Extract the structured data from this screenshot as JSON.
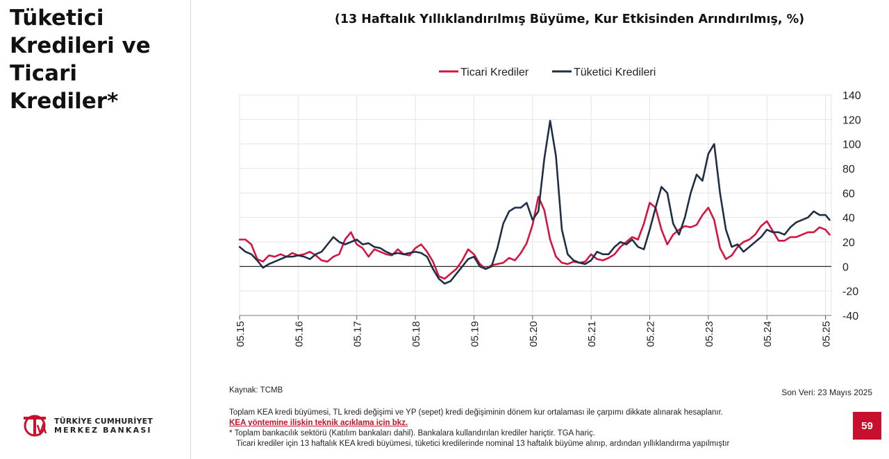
{
  "page": {
    "title": "Tüketici Kredileri ve Ticari Krediler*",
    "page_number": "59"
  },
  "logo": {
    "line1": "TÜRKİYE CUMHURİYET",
    "line2": "MERKEZ BANKASI",
    "emblem_text": "TCMB"
  },
  "footer": {
    "source": "Kaynak: TCMB",
    "last_data": "Son Veri: 23 Mayıs 2025",
    "note1": "Toplam KEA kredi büyümesi, TL kredi değişimi ve YP (sepet) kredi değişiminin dönem kur ortalaması ile çarpımı dikkate alınarak hesaplanır.",
    "link": "KEA yöntemine ilişkin teknik açıklama için bkz.",
    "note2": "* Toplam bankacılık sektörü (Katılım bankaları dahil). Bankalara kullandırılan krediler hariçtir. TGA hariç.",
    "note3": "Ticari krediler için 13 haftalık KEA kredi büyümesi, tüketici kredilerinde nominal 13 haftalık büyüme alınıp, ardından yıllıklandırma yapılmıştır"
  },
  "colors": {
    "ticari": "#d2143f",
    "tuketici": "#1e2f45",
    "grid": "#e3e3e3",
    "badge": "#c8102e"
  },
  "chart_data": {
    "type": "line",
    "title": "(13 Haftalık Yıllıklandırılmış Büyüme, Kur Etkisinden Arındırılmış, %)",
    "xlabel": "",
    "ylabel": "",
    "ylim": [
      -40,
      140
    ],
    "yticks": [
      140,
      120,
      100,
      80,
      60,
      40,
      20,
      0,
      -20,
      -40
    ],
    "xlim": [
      2015.0,
      2025.1
    ],
    "x_tick_labels": [
      "05.15",
      "05.16",
      "05.17",
      "05.18",
      "05.19",
      "05.20",
      "05.21",
      "05.22",
      "05.23",
      "05.24",
      "05.25"
    ],
    "legend_position": "top-center",
    "series": [
      {
        "name": "Ticari Krediler",
        "color": "#d2143f",
        "x": [
          2015.0,
          2015.1,
          2015.2,
          2015.3,
          2015.4,
          2015.5,
          2015.6,
          2015.7,
          2015.8,
          2015.9,
          2016.0,
          2016.1,
          2016.2,
          2016.3,
          2016.4,
          2016.5,
          2016.6,
          2016.7,
          2016.8,
          2016.9,
          2017.0,
          2017.1,
          2017.2,
          2017.3,
          2017.4,
          2017.5,
          2017.6,
          2017.7,
          2017.8,
          2017.9,
          2018.0,
          2018.1,
          2018.2,
          2018.3,
          2018.4,
          2018.5,
          2018.6,
          2018.7,
          2018.8,
          2018.9,
          2019.0,
          2019.1,
          2019.2,
          2019.3,
          2019.4,
          2019.5,
          2019.6,
          2019.7,
          2019.8,
          2019.9,
          2020.0,
          2020.1,
          2020.2,
          2020.3,
          2020.4,
          2020.5,
          2020.6,
          2020.7,
          2020.8,
          2020.9,
          2021.0,
          2021.1,
          2021.2,
          2021.3,
          2021.4,
          2021.5,
          2021.6,
          2021.7,
          2021.8,
          2021.9,
          2022.0,
          2022.1,
          2022.2,
          2022.3,
          2022.4,
          2022.5,
          2022.6,
          2022.7,
          2022.8,
          2022.9,
          2023.0,
          2023.1,
          2023.2,
          2023.3,
          2023.4,
          2023.5,
          2023.6,
          2023.7,
          2023.8,
          2023.9,
          2024.0,
          2024.1,
          2024.2,
          2024.3,
          2024.4,
          2024.5,
          2024.6,
          2024.7,
          2024.8,
          2024.9,
          2025.0,
          2025.07
        ],
        "values": [
          22,
          22,
          18,
          6,
          4,
          9,
          8,
          10,
          8,
          11,
          9,
          10,
          12,
          9,
          5,
          4,
          8,
          10,
          22,
          28,
          18,
          15,
          8,
          14,
          12,
          10,
          9,
          14,
          10,
          9,
          15,
          18,
          12,
          4,
          -8,
          -10,
          -6,
          -2,
          5,
          14,
          10,
          2,
          -2,
          1,
          2,
          3,
          7,
          5,
          11,
          19,
          34,
          57,
          46,
          22,
          8,
          3,
          2,
          4,
          3,
          4,
          10,
          6,
          5,
          7,
          10,
          16,
          20,
          24,
          22,
          35,
          52,
          48,
          30,
          18,
          26,
          30,
          33,
          32,
          34,
          42,
          48,
          38,
          15,
          6,
          9,
          16,
          20,
          22,
          26,
          33,
          37,
          29,
          21,
          21,
          24,
          24,
          26,
          28,
          28,
          32,
          30,
          26
        ]
      },
      {
        "name": "Tüketici Kredileri",
        "color": "#1e2f45",
        "x": [
          2015.0,
          2015.1,
          2015.2,
          2015.3,
          2015.4,
          2015.5,
          2015.6,
          2015.7,
          2015.8,
          2015.9,
          2016.0,
          2016.1,
          2016.2,
          2016.3,
          2016.4,
          2016.5,
          2016.6,
          2016.7,
          2016.8,
          2016.9,
          2017.0,
          2017.1,
          2017.2,
          2017.3,
          2017.4,
          2017.5,
          2017.6,
          2017.7,
          2017.8,
          2017.9,
          2018.0,
          2018.1,
          2018.2,
          2018.3,
          2018.4,
          2018.5,
          2018.6,
          2018.7,
          2018.8,
          2018.9,
          2019.0,
          2019.1,
          2019.2,
          2019.3,
          2019.4,
          2019.5,
          2019.6,
          2019.7,
          2019.8,
          2019.9,
          2020.0,
          2020.1,
          2020.2,
          2020.3,
          2020.4,
          2020.5,
          2020.6,
          2020.7,
          2020.8,
          2020.9,
          2021.0,
          2021.1,
          2021.2,
          2021.3,
          2021.4,
          2021.5,
          2021.6,
          2021.7,
          2021.8,
          2021.9,
          2022.0,
          2022.1,
          2022.2,
          2022.3,
          2022.4,
          2022.5,
          2022.6,
          2022.7,
          2022.8,
          2022.9,
          2023.0,
          2023.1,
          2023.2,
          2023.3,
          2023.4,
          2023.5,
          2023.6,
          2023.7,
          2023.8,
          2023.9,
          2024.0,
          2024.1,
          2024.2,
          2024.3,
          2024.4,
          2024.5,
          2024.6,
          2024.7,
          2024.8,
          2024.9,
          2025.0,
          2025.07
        ],
        "values": [
          16,
          12,
          10,
          5,
          -1,
          2,
          4,
          6,
          8,
          8,
          9,
          8,
          6,
          10,
          12,
          18,
          24,
          20,
          18,
          20,
          22,
          18,
          19,
          16,
          15,
          12,
          10,
          11,
          10,
          11,
          12,
          11,
          8,
          -2,
          -10,
          -14,
          -12,
          -6,
          0,
          6,
          8,
          0,
          -2,
          0,
          15,
          35,
          45,
          48,
          48,
          52,
          38,
          45,
          88,
          119,
          90,
          30,
          10,
          5,
          3,
          2,
          5,
          12,
          10,
          10,
          16,
          20,
          18,
          22,
          16,
          14,
          30,
          48,
          65,
          60,
          35,
          26,
          40,
          60,
          75,
          70,
          92,
          100,
          60,
          30,
          16,
          18,
          12,
          16,
          20,
          24,
          30,
          28,
          28,
          26,
          32,
          36,
          38,
          40,
          45,
          42,
          42,
          38
        ]
      }
    ]
  }
}
